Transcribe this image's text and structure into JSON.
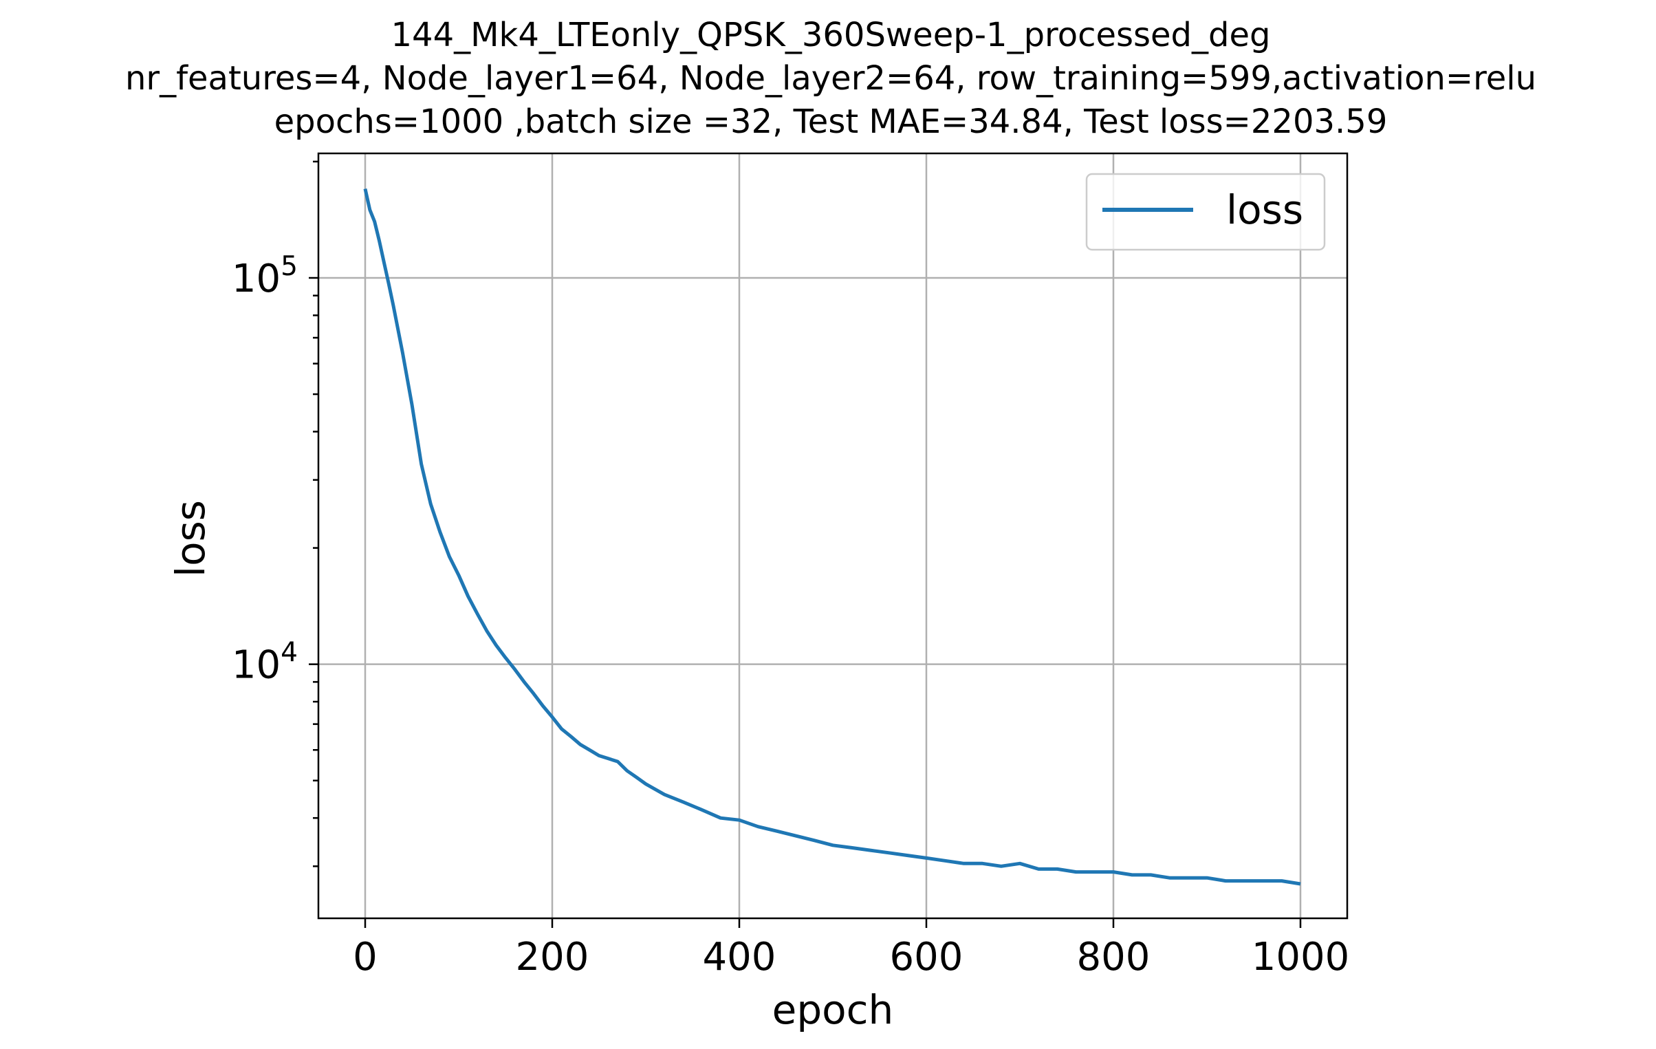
{
  "chart_data": {
    "type": "line",
    "title_lines": [
      "144_Mk4_LTEonly_QPSK_360Sweep-1_processed_deg",
      "nr_features=4, Node_layer1=64, Node_layer2=64, row_training=599,activation=relu",
      "epochs=1000 ,batch size =32, Test MAE=34.84, Test loss=2203.59"
    ],
    "xlabel": "epoch",
    "ylabel": "loss",
    "xlim": [
      -50,
      1050
    ],
    "ylim": [
      2200,
      210000
    ],
    "yscale": "log",
    "grid": true,
    "legend_position": "upper right",
    "x_ticks": [
      0,
      200,
      400,
      600,
      800,
      1000
    ],
    "x_tick_labels": [
      "0",
      "200",
      "400",
      "600",
      "800",
      "1000"
    ],
    "y_ticks": [
      {
        "value": 10000,
        "base": "10",
        "exp": "4"
      },
      {
        "value": 100000,
        "base": "10",
        "exp": "5"
      }
    ],
    "series": [
      {
        "name": "loss",
        "color": "#1f77b4",
        "x": [
          0,
          5,
          10,
          15,
          20,
          25,
          30,
          40,
          50,
          60,
          70,
          80,
          90,
          100,
          110,
          120,
          130,
          140,
          150,
          160,
          170,
          180,
          190,
          200,
          210,
          220,
          230,
          240,
          250,
          260,
          270,
          280,
          290,
          300,
          320,
          340,
          360,
          380,
          400,
          420,
          440,
          460,
          480,
          500,
          520,
          540,
          560,
          580,
          600,
          620,
          640,
          660,
          680,
          700,
          720,
          740,
          760,
          780,
          800,
          820,
          840,
          860,
          880,
          900,
          920,
          940,
          960,
          980,
          1000
        ],
        "y": [
          170000,
          150000,
          140000,
          125000,
          110000,
          97000,
          85000,
          64000,
          47000,
          33000,
          26000,
          22000,
          19000,
          17000,
          15000,
          13500,
          12200,
          11200,
          10400,
          9700,
          9000,
          8400,
          7800,
          7300,
          6800,
          6500,
          6200,
          6000,
          5800,
          5700,
          5600,
          5300,
          5100,
          4900,
          4600,
          4400,
          4200,
          4000,
          3950,
          3800,
          3700,
          3600,
          3500,
          3400,
          3350,
          3300,
          3250,
          3200,
          3150,
          3100,
          3050,
          3050,
          3000,
          3050,
          2950,
          2950,
          2900,
          2900,
          2900,
          2850,
          2850,
          2800,
          2800,
          2800,
          2750,
          2750,
          2750,
          2750,
          2700
        ]
      }
    ]
  }
}
